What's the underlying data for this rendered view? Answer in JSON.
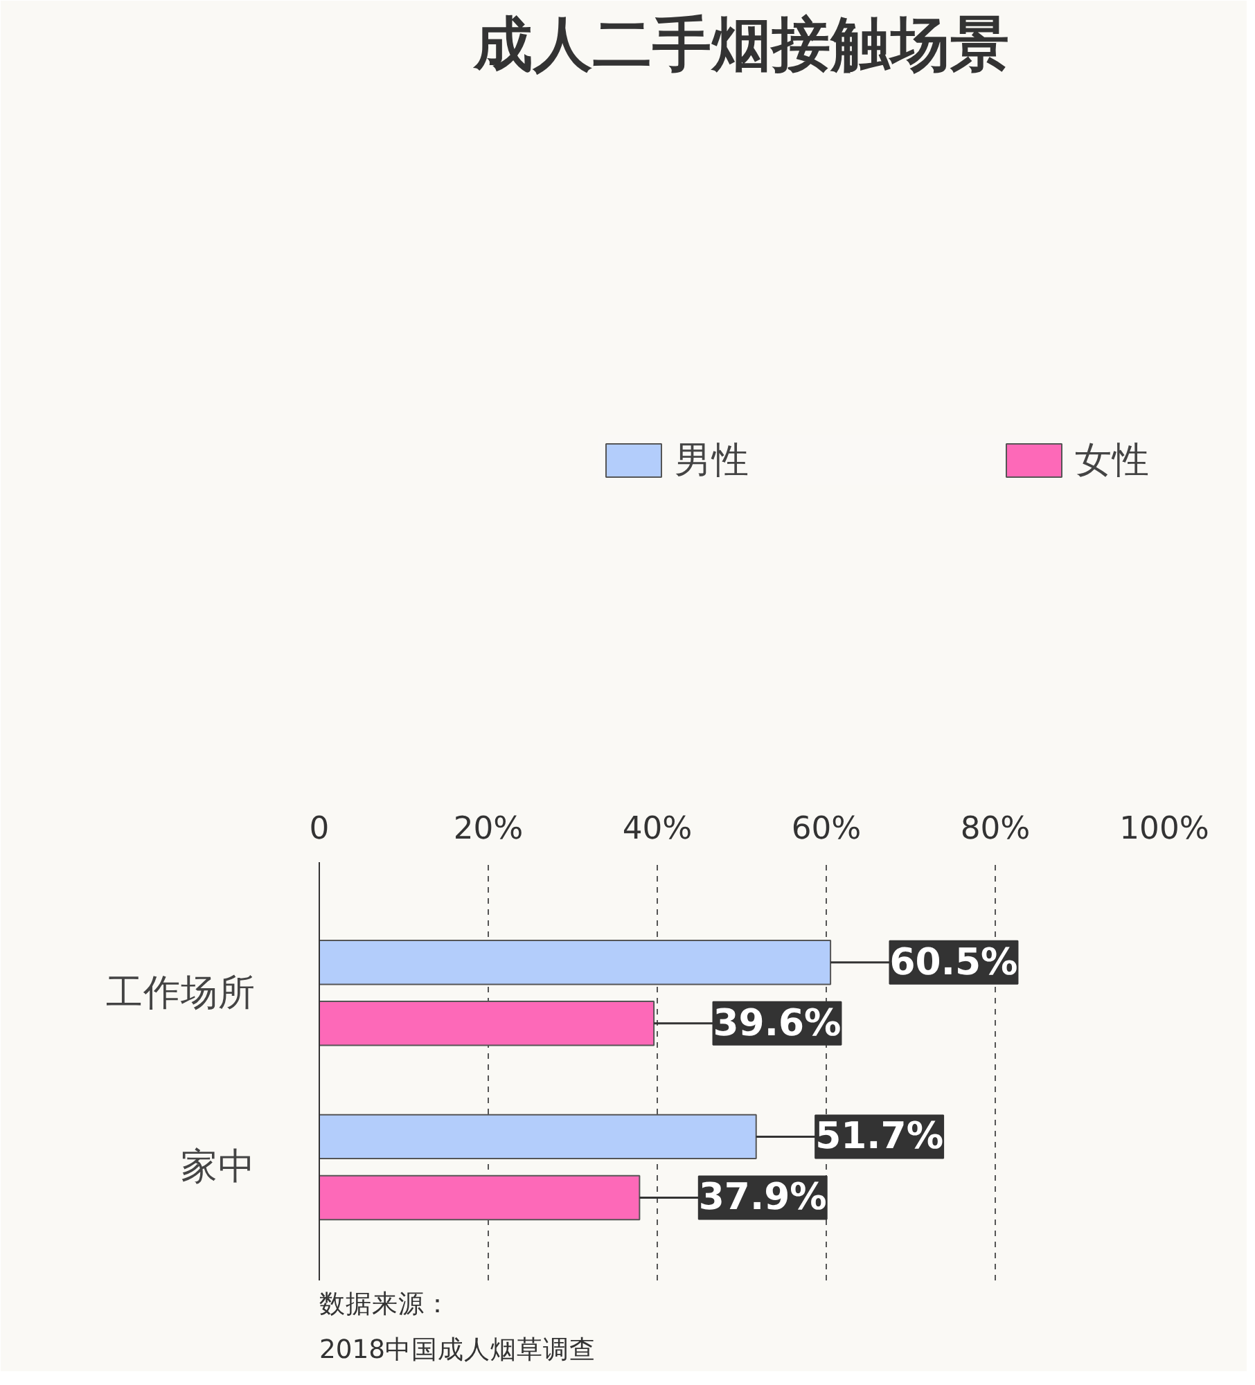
{
  "chart_data": {
    "type": "bar",
    "orientation": "horizontal",
    "title": "成人二手烟接触场景",
    "categories": [
      "工作场所",
      "家中"
    ],
    "series": [
      {
        "name": "男性",
        "color": "#b3cdfb",
        "values": [
          60.5,
          51.7
        ],
        "value_labels": [
          "60.5%",
          "51.7%"
        ]
      },
      {
        "name": "女性",
        "color": "#fd69b8",
        "values": [
          39.6,
          37.9
        ],
        "value_labels": [
          "39.6%",
          "37.9%"
        ]
      }
    ],
    "xlim": [
      0,
      100
    ],
    "xticks": [
      0,
      {
        "value": 20,
        "label": "20%"
      },
      {
        "value": 40,
        "label": "40%"
      },
      {
        "value": 60,
        "label": "60%"
      },
      {
        "value": 80,
        "label": "80%"
      },
      {
        "value": 100,
        "label": "100%"
      }
    ],
    "grid": "x",
    "legend": "top",
    "annotations": [
      "数据来源：",
      "2018中国成人烟草调查"
    ]
  }
}
